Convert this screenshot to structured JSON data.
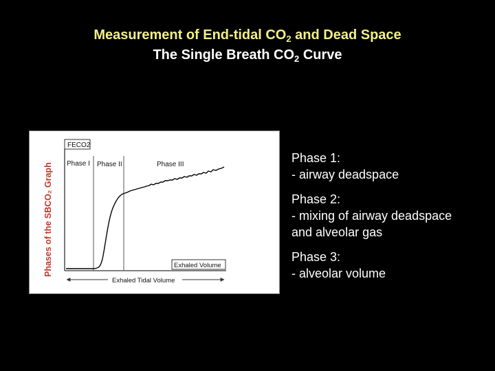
{
  "title": {
    "line1_prefix": "Measurement of End-tidal CO",
    "line1_sub": "2",
    "line1_suffix": " and Dead Space",
    "line2_prefix": "The Single Breath CO",
    "line2_sub": "2",
    "line2_suffix": " Curve"
  },
  "figure": {
    "side_label": "Phases of the SBCO₂ Graph",
    "y_label": "FECO2",
    "phase_labels": [
      "Phase I",
      "Phase II",
      "Phase III"
    ],
    "exhaled_volume_label": "Exhaled Volume",
    "tidal_volume_label": "Exhaled Tidal Volume",
    "colors": {
      "side_label": "#c0392b",
      "curve": "#000000",
      "axes": "#333333"
    }
  },
  "notes": [
    {
      "heading": "Phase 1:",
      "lines": [
        "-  airway deadspace"
      ]
    },
    {
      "heading": "Phase 2:",
      "lines": [
        "-  mixing of airway deadspace",
        "and alveolar gas"
      ]
    },
    {
      "heading": "Phase 3:",
      "lines": [
        "-  alveolar volume"
      ]
    }
  ]
}
